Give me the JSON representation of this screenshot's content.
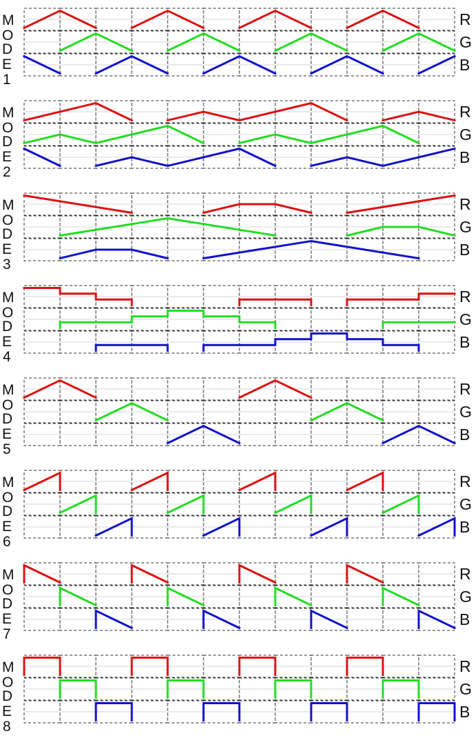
{
  "colors": {
    "R": "#dd1111",
    "G": "#22dd22",
    "B": "#1111cc"
  },
  "channel_labels": [
    "R",
    "G",
    "B"
  ],
  "modes": [
    {
      "letters": [
        "M",
        "O",
        "D",
        "E",
        "1"
      ],
      "R": [
        [
          0,
          0
        ],
        [
          1,
          1
        ],
        [
          2,
          0
        ],
        null,
        [
          3,
          0
        ],
        [
          4,
          1
        ],
        [
          5,
          0
        ],
        null,
        [
          6,
          0
        ],
        [
          7,
          1
        ],
        [
          8,
          0
        ],
        null,
        [
          9,
          0
        ],
        [
          10,
          1
        ],
        [
          11,
          0
        ]
      ],
      "G": [
        [
          1,
          0
        ],
        [
          2,
          1
        ],
        [
          3,
          0
        ],
        null,
        [
          4,
          0
        ],
        [
          5,
          1
        ],
        [
          6,
          0
        ],
        null,
        [
          7,
          0
        ],
        [
          8,
          1
        ],
        [
          9,
          0
        ],
        null,
        [
          10,
          0
        ],
        [
          11,
          1
        ],
        [
          12,
          0
        ]
      ],
      "B": [
        [
          0,
          1
        ],
        [
          1,
          0
        ],
        null,
        [
          2,
          0
        ],
        [
          3,
          1
        ],
        [
          4,
          0
        ],
        null,
        [
          5,
          0
        ],
        [
          6,
          1
        ],
        [
          7,
          0
        ],
        null,
        [
          8,
          0
        ],
        [
          9,
          1
        ],
        [
          10,
          0
        ],
        null,
        [
          11,
          0
        ],
        [
          12,
          1
        ]
      ]
    },
    {
      "letters": [
        "M",
        "O",
        "D",
        "E",
        "2"
      ],
      "R": [
        [
          0,
          0
        ],
        [
          2,
          1
        ],
        [
          3,
          0
        ],
        null,
        [
          4,
          0
        ],
        [
          5,
          0.5
        ],
        [
          6,
          0
        ],
        [
          8,
          1
        ],
        [
          9,
          0
        ],
        null,
        [
          10,
          0
        ],
        [
          11,
          0.5
        ],
        [
          12,
          0
        ]
      ],
      "G": [
        [
          0,
          0
        ],
        [
          1,
          0.5
        ],
        [
          2,
          0
        ],
        [
          4,
          1
        ],
        [
          5,
          0
        ],
        null,
        [
          6,
          0
        ],
        [
          7,
          0.5
        ],
        [
          8,
          0
        ],
        [
          10,
          1
        ],
        [
          11,
          0
        ]
      ],
      "B": [
        [
          0,
          1
        ],
        [
          1,
          0
        ],
        null,
        [
          2,
          0
        ],
        [
          3,
          0.5
        ],
        [
          4,
          0
        ],
        [
          6,
          1
        ],
        [
          7,
          0
        ],
        null,
        [
          8,
          0
        ],
        [
          9,
          0.5
        ],
        [
          10,
          0
        ],
        [
          12,
          1
        ]
      ]
    },
    {
      "letters": [
        "M",
        "O",
        "D",
        "E",
        "3"
      ],
      "R": [
        [
          0,
          1
        ],
        [
          3,
          0
        ],
        null,
        [
          5,
          0
        ],
        [
          6,
          0.5
        ],
        [
          7,
          0.5
        ],
        [
          8,
          0
        ],
        null,
        [
          9,
          0
        ],
        [
          12,
          1
        ]
      ],
      "G": [
        [
          1,
          0
        ],
        [
          4,
          1
        ],
        [
          7,
          0
        ],
        null,
        [
          9,
          0
        ],
        [
          10,
          0.5
        ],
        [
          11,
          0.5
        ],
        [
          12,
          0
        ]
      ],
      "B": [
        [
          1,
          0
        ],
        [
          2,
          0.5
        ],
        [
          3,
          0.5
        ],
        [
          4,
          0
        ],
        null,
        [
          5,
          0
        ],
        [
          8,
          1
        ],
        [
          11,
          0
        ]
      ]
    },
    {
      "letters": [
        "M",
        "O",
        "D",
        "E",
        "4"
      ],
      "R": [
        [
          0,
          1
        ],
        [
          1,
          1
        ],
        [
          1,
          0.67
        ],
        [
          2,
          0.67
        ],
        [
          2,
          0.33
        ],
        [
          3,
          0.33
        ],
        [
          3,
          0
        ],
        null,
        [
          6,
          0
        ],
        [
          6,
          0.33
        ],
        [
          8,
          0.33
        ],
        [
          8,
          0
        ],
        null,
        [
          9,
          0
        ],
        [
          9,
          0.33
        ],
        [
          11,
          0.33
        ],
        [
          11,
          0.67
        ],
        [
          12,
          0.67
        ]
      ],
      "G": [
        [
          1,
          0
        ],
        [
          1,
          0.33
        ],
        [
          3,
          0.33
        ],
        [
          3,
          0.67
        ],
        [
          4,
          0.67
        ],
        [
          4,
          1
        ],
        [
          5,
          1
        ],
        [
          5,
          0.67
        ],
        [
          6,
          0.67
        ],
        [
          6,
          0.33
        ],
        [
          7,
          0.33
        ],
        [
          7,
          0
        ],
        null,
        [
          10,
          0
        ],
        [
          10,
          0.33
        ],
        [
          12,
          0.33
        ]
      ],
      "B": [
        [
          2,
          0
        ],
        [
          2,
          0.33
        ],
        [
          4,
          0.33
        ],
        [
          4,
          0
        ],
        null,
        [
          5,
          0
        ],
        [
          5,
          0.33
        ],
        [
          7,
          0.33
        ],
        [
          7,
          0.67
        ],
        [
          8,
          0.67
        ],
        [
          8,
          1
        ],
        [
          9,
          1
        ],
        [
          9,
          0.67
        ],
        [
          10,
          0.67
        ],
        [
          10,
          0.33
        ],
        [
          11,
          0.33
        ],
        [
          11,
          0
        ]
      ]
    },
    {
      "letters": [
        "M",
        "O",
        "D",
        "E",
        "5"
      ],
      "R": [
        [
          0,
          0
        ],
        [
          1,
          1
        ],
        [
          2,
          0
        ],
        null,
        [
          6,
          0
        ],
        [
          7,
          1
        ],
        [
          8,
          0
        ]
      ],
      "G": [
        [
          2,
          0
        ],
        [
          3,
          1
        ],
        [
          4,
          0
        ],
        null,
        [
          8,
          0
        ],
        [
          9,
          1
        ],
        [
          10,
          0
        ]
      ],
      "B": [
        [
          4,
          0
        ],
        [
          5,
          1
        ],
        [
          6,
          0
        ],
        null,
        [
          10,
          0
        ],
        [
          11,
          1
        ],
        [
          12,
          0
        ]
      ]
    },
    {
      "letters": [
        "M",
        "O",
        "D",
        "E",
        "6"
      ],
      "R": [
        [
          0,
          0
        ],
        [
          1,
          1
        ],
        [
          1,
          0
        ],
        null,
        [
          3,
          0
        ],
        [
          4,
          1
        ],
        [
          4,
          0
        ],
        null,
        [
          6,
          0
        ],
        [
          7,
          1
        ],
        [
          7,
          0
        ],
        null,
        [
          9,
          0
        ],
        [
          10,
          1
        ],
        [
          10,
          0
        ]
      ],
      "G": [
        [
          1,
          0
        ],
        [
          2,
          1
        ],
        [
          2,
          0
        ],
        null,
        [
          4,
          0
        ],
        [
          5,
          1
        ],
        [
          5,
          0
        ],
        null,
        [
          7,
          0
        ],
        [
          8,
          1
        ],
        [
          8,
          0
        ],
        null,
        [
          10,
          0
        ],
        [
          11,
          1
        ],
        [
          11,
          0
        ]
      ],
      "B": [
        [
          2,
          0
        ],
        [
          3,
          1
        ],
        [
          3,
          0
        ],
        null,
        [
          5,
          0
        ],
        [
          6,
          1
        ],
        [
          6,
          0
        ],
        null,
        [
          8,
          0
        ],
        [
          9,
          1
        ],
        [
          9,
          0
        ],
        null,
        [
          11,
          0
        ],
        [
          12,
          1
        ],
        [
          12,
          0
        ]
      ]
    },
    {
      "letters": [
        "M",
        "O",
        "D",
        "E",
        "7"
      ],
      "R": [
        [
          0,
          0
        ],
        [
          0,
          1
        ],
        [
          1,
          0
        ],
        null,
        [
          3,
          0
        ],
        [
          3,
          1
        ],
        [
          4,
          0
        ],
        null,
        [
          6,
          0
        ],
        [
          6,
          1
        ],
        [
          7,
          0
        ],
        null,
        [
          9,
          0
        ],
        [
          9,
          1
        ],
        [
          10,
          0
        ]
      ],
      "G": [
        [
          1,
          0
        ],
        [
          1,
          1
        ],
        [
          2,
          0
        ],
        null,
        [
          4,
          0
        ],
        [
          4,
          1
        ],
        [
          5,
          0
        ],
        null,
        [
          7,
          0
        ],
        [
          7,
          1
        ],
        [
          8,
          0
        ],
        null,
        [
          10,
          0
        ],
        [
          10,
          1
        ],
        [
          11,
          0
        ]
      ],
      "B": [
        [
          2,
          0
        ],
        [
          2,
          1
        ],
        [
          3,
          0
        ],
        null,
        [
          5,
          0
        ],
        [
          5,
          1
        ],
        [
          6,
          0
        ],
        null,
        [
          8,
          0
        ],
        [
          8,
          1
        ],
        [
          9,
          0
        ],
        null,
        [
          11,
          0
        ],
        [
          11,
          1
        ],
        [
          12,
          0
        ]
      ]
    },
    {
      "letters": [
        "M",
        "O",
        "D",
        "E",
        "8"
      ],
      "R": [
        [
          0,
          0
        ],
        [
          0,
          1
        ],
        [
          1,
          1
        ],
        [
          1,
          0
        ],
        null,
        [
          3,
          0
        ],
        [
          3,
          1
        ],
        [
          4,
          1
        ],
        [
          4,
          0
        ],
        null,
        [
          6,
          0
        ],
        [
          6,
          1
        ],
        [
          7,
          1
        ],
        [
          7,
          0
        ],
        null,
        [
          9,
          0
        ],
        [
          9,
          1
        ],
        [
          10,
          1
        ],
        [
          10,
          0
        ]
      ],
      "G": [
        [
          1,
          0
        ],
        [
          1,
          1
        ],
        [
          2,
          1
        ],
        [
          2,
          0
        ],
        null,
        [
          4,
          0
        ],
        [
          4,
          1
        ],
        [
          5,
          1
        ],
        [
          5,
          0
        ],
        null,
        [
          7,
          0
        ],
        [
          7,
          1
        ],
        [
          8,
          1
        ],
        [
          8,
          0
        ],
        null,
        [
          10,
          0
        ],
        [
          10,
          1
        ],
        [
          11,
          1
        ],
        [
          11,
          0
        ]
      ],
      "B": [
        [
          2,
          0
        ],
        [
          2,
          1
        ],
        [
          3,
          1
        ],
        [
          3,
          0
        ],
        null,
        [
          5,
          0
        ],
        [
          5,
          1
        ],
        [
          6,
          1
        ],
        [
          6,
          0
        ],
        null,
        [
          8,
          0
        ],
        [
          8,
          1
        ],
        [
          9,
          1
        ],
        [
          9,
          0
        ],
        null,
        [
          11,
          0
        ],
        [
          11,
          1
        ],
        [
          12,
          1
        ],
        [
          12,
          0
        ]
      ]
    }
  ]
}
